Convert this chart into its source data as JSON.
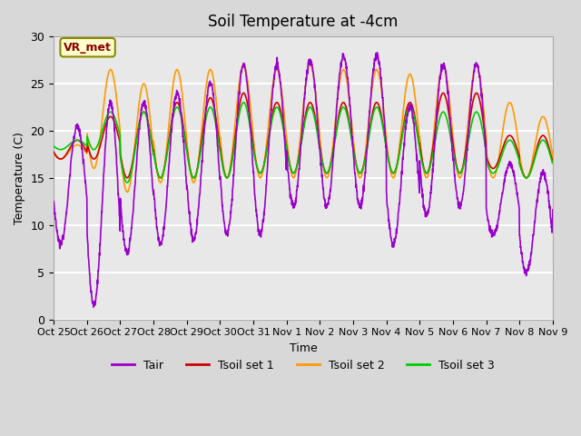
{
  "title": "Soil Temperature at -4cm",
  "xlabel": "Time",
  "ylabel": "Temperature (C)",
  "ylim": [
    0,
    30
  ],
  "xlim": [
    0,
    336
  ],
  "background_color": "#e8e8e8",
  "plot_bg_color": "#e8e8e8",
  "grid_color": "white",
  "legend_label": "VR_met",
  "legend_box_color": "#ffffcc",
  "legend_box_edge": "#ccaa00",
  "series_colors": {
    "Tair": "#9900cc",
    "Tsoil1": "#cc0000",
    "Tsoil2": "#ff9900",
    "Tsoil3": "#00cc00"
  },
  "legend_labels": [
    "Tair",
    "Tsoil set 1",
    "Tsoil set 2",
    "Tsoil set 3"
  ],
  "xtick_labels": [
    "Oct 25",
    "Oct 26",
    "Oct 27",
    "Oct 28",
    "Oct 29",
    "Oct 30",
    "Oct 31",
    "Nov 1",
    "Nov 2",
    "Nov 3",
    "Nov 4",
    "Nov 5",
    "Nov 6",
    "Nov 7",
    "Nov 8",
    "Nov 9"
  ],
  "xtick_positions": [
    0,
    24,
    48,
    72,
    96,
    120,
    144,
    168,
    192,
    216,
    240,
    264,
    288,
    312,
    336,
    360
  ]
}
